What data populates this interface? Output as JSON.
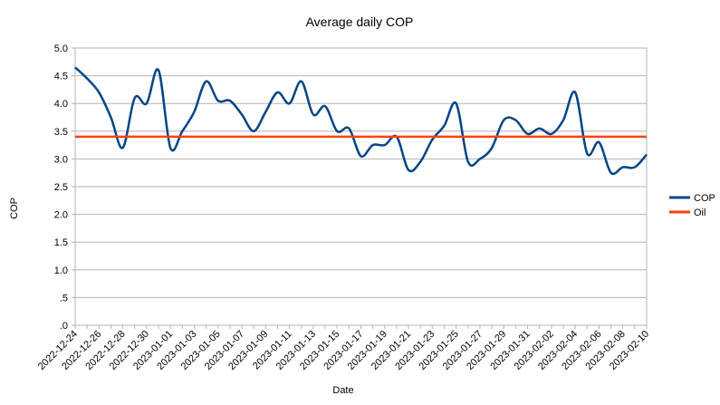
{
  "chart_data": {
    "type": "line",
    "title": "Average daily COP",
    "xlabel": "Date",
    "ylabel": "COP",
    "ylim": [
      0,
      5
    ],
    "yticks": [
      {
        "value": 0,
        "label": ".0"
      },
      {
        "value": 0.5,
        "label": ".5"
      },
      {
        "value": 1,
        "label": "1.0"
      },
      {
        "value": 1.5,
        "label": "1.5"
      },
      {
        "value": 2,
        "label": "2.0"
      },
      {
        "value": 2.5,
        "label": "2.5"
      },
      {
        "value": 3,
        "label": "3.0"
      },
      {
        "value": 3.5,
        "label": "3.5"
      },
      {
        "value": 4,
        "label": "4.0"
      },
      {
        "value": 4.5,
        "label": "4.5"
      },
      {
        "value": 5,
        "label": "5.0"
      }
    ],
    "grid": "horizontal",
    "legend_position": "right",
    "x": [
      "2022-12-24",
      "2022-12-25",
      "2022-12-26",
      "2022-12-27",
      "2022-12-28",
      "2022-12-29",
      "2022-12-30",
      "2022-12-31",
      "2023-01-01",
      "2023-01-02",
      "2023-01-03",
      "2023-01-04",
      "2023-01-05",
      "2023-01-06",
      "2023-01-07",
      "2023-01-08",
      "2023-01-09",
      "2023-01-10",
      "2023-01-11",
      "2023-01-12",
      "2023-01-13",
      "2023-01-14",
      "2023-01-15",
      "2023-01-16",
      "2023-01-17",
      "2023-01-18",
      "2023-01-19",
      "2023-01-20",
      "2023-01-21",
      "2023-01-22",
      "2023-01-23",
      "2023-01-24",
      "2023-01-25",
      "2023-01-26",
      "2023-01-27",
      "2023-01-28",
      "2023-01-29",
      "2023-01-30",
      "2023-01-31",
      "2023-02-01",
      "2023-02-02",
      "2023-02-03",
      "2023-02-04",
      "2023-02-05",
      "2023-02-06",
      "2023-02-07",
      "2023-02-08",
      "2023-02-09",
      "2023-02-10"
    ],
    "x_tick_labels": [
      "2022-12-24",
      "2022-12-26",
      "2022-12-28",
      "2022-12-30",
      "2023-01-01",
      "2023-01-03",
      "2023-01-05",
      "2023-01-07",
      "2023-01-09",
      "2023-01-11",
      "2023-01-13",
      "2023-01-15",
      "2023-01-17",
      "2023-01-19",
      "2023-01-21",
      "2023-01-23",
      "2023-01-25",
      "2023-01-27",
      "2023-01-29",
      "2023-01-31",
      "2023-02-02",
      "2023-02-04",
      "2023-02-06",
      "2023-02-08",
      "2023-02-10"
    ],
    "series": [
      {
        "name": "COP",
        "color": "#004586",
        "values": [
          4.65,
          4.45,
          4.2,
          3.75,
          3.2,
          4.1,
          4.0,
          4.6,
          3.2,
          3.5,
          3.85,
          4.4,
          4.05,
          4.05,
          3.8,
          3.5,
          3.85,
          4.2,
          4.0,
          4.4,
          3.8,
          3.95,
          3.5,
          3.55,
          3.05,
          3.25,
          3.25,
          3.4,
          2.8,
          2.95,
          3.35,
          3.6,
          4.0,
          2.95,
          3.0,
          3.2,
          3.7,
          3.7,
          3.45,
          3.55,
          3.45,
          3.7,
          4.2,
          3.1,
          3.3,
          2.75,
          2.85,
          2.85,
          3.08
        ]
      },
      {
        "name": "Oil",
        "color": "#ff420e",
        "values": [
          3.4,
          3.4,
          3.4,
          3.4,
          3.4,
          3.4,
          3.4,
          3.4,
          3.4,
          3.4,
          3.4,
          3.4,
          3.4,
          3.4,
          3.4,
          3.4,
          3.4,
          3.4,
          3.4,
          3.4,
          3.4,
          3.4,
          3.4,
          3.4,
          3.4,
          3.4,
          3.4,
          3.4,
          3.4,
          3.4,
          3.4,
          3.4,
          3.4,
          3.4,
          3.4,
          3.4,
          3.4,
          3.4,
          3.4,
          3.4,
          3.4,
          3.4,
          3.4,
          3.4,
          3.4,
          3.4,
          3.4,
          3.4,
          3.4
        ]
      }
    ]
  }
}
